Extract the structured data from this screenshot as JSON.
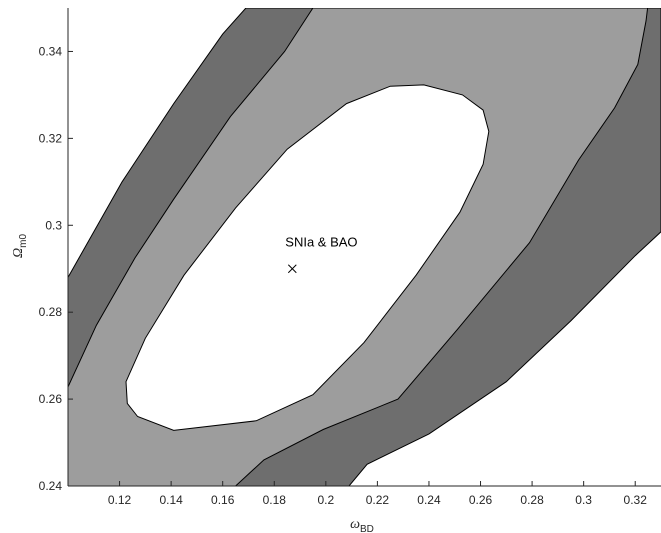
{
  "chart_data": {
    "type": "contour",
    "title": "",
    "xlabel": {
      "symbol": "ω",
      "subscript": "BD"
    },
    "ylabel": {
      "symbol": "Ω",
      "subscript": "m0"
    },
    "xlim": [
      0.1,
      0.33
    ],
    "ylim": [
      0.24,
      0.35
    ],
    "x_ticks": [
      0.12,
      0.14,
      0.16,
      0.18,
      0.2,
      0.22,
      0.24,
      0.26,
      0.28,
      0.3,
      0.32
    ],
    "x_tick_labels": [
      "0.12",
      "0.14",
      "0.16",
      "0.18",
      "0.2",
      "0.22",
      "0.24",
      "0.26",
      "0.28",
      "0.3",
      "0.32"
    ],
    "y_ticks": [
      0.24,
      0.26,
      0.28,
      0.3,
      0.32,
      0.34
    ],
    "y_tick_labels": [
      "0.24",
      "0.26",
      "0.28",
      "0.3",
      "0.32",
      "0.34"
    ],
    "grid": false,
    "legend": "none",
    "best_fit": {
      "x": 0.187,
      "y": 0.29,
      "marker": "x"
    },
    "annotation": "SNIa & BAO",
    "confidence_regions": [
      {
        "level": "1-sigma",
        "fill": "#ffffff",
        "boundary": [
          [
            0.238,
            0.3323
          ],
          [
            0.253,
            0.33
          ],
          [
            0.261,
            0.3265
          ],
          [
            0.2632,
            0.3216
          ],
          [
            0.261,
            0.314
          ],
          [
            0.252,
            0.303
          ],
          [
            0.235,
            0.2885
          ],
          [
            0.2148,
            0.273
          ],
          [
            0.195,
            0.261
          ],
          [
            0.173,
            0.255
          ],
          [
            0.141,
            0.2528
          ],
          [
            0.127,
            0.256
          ],
          [
            0.123,
            0.259
          ],
          [
            0.1225,
            0.264
          ],
          [
            0.13,
            0.274
          ],
          [
            0.145,
            0.2885
          ],
          [
            0.165,
            0.304
          ],
          [
            0.185,
            0.3175
          ],
          [
            0.208,
            0.328
          ],
          [
            0.225,
            0.332
          ]
        ]
      },
      {
        "level": "2-sigma",
        "fill": "#9d9d9d",
        "upper_boundary": [
          [
            0.1,
            0.2628
          ],
          [
            0.111,
            0.277
          ],
          [
            0.126,
            0.2925
          ],
          [
            0.141,
            0.306
          ],
          [
            0.163,
            0.325
          ],
          [
            0.184,
            0.34
          ],
          [
            0.195,
            0.35
          ]
        ],
        "lower_boundary": [
          [
            0.165,
            0.24
          ],
          [
            0.176,
            0.246
          ],
          [
            0.199,
            0.253
          ],
          [
            0.228,
            0.26
          ],
          [
            0.251,
            0.276
          ],
          [
            0.279,
            0.296
          ],
          [
            0.298,
            0.315
          ],
          [
            0.312,
            0.327
          ],
          [
            0.321,
            0.337
          ],
          [
            0.3242,
            0.347
          ],
          [
            0.3248,
            0.35
          ]
        ]
      },
      {
        "level": "3-sigma",
        "fill": "#6e6e6e",
        "upper_boundary": [
          [
            0.1,
            0.288
          ],
          [
            0.121,
            0.31
          ],
          [
            0.141,
            0.328
          ],
          [
            0.16,
            0.344
          ],
          [
            0.169,
            0.35
          ]
        ],
        "lower_boundary": [
          [
            0.209,
            0.24
          ],
          [
            0.216,
            0.245
          ],
          [
            0.24,
            0.252
          ],
          [
            0.27,
            0.264
          ],
          [
            0.295,
            0.278
          ],
          [
            0.32,
            0.293
          ],
          [
            0.33,
            0.2985
          ]
        ]
      }
    ],
    "colors": {
      "outside": "#ffffff",
      "outline": "#000000",
      "axis": "#262626"
    }
  }
}
